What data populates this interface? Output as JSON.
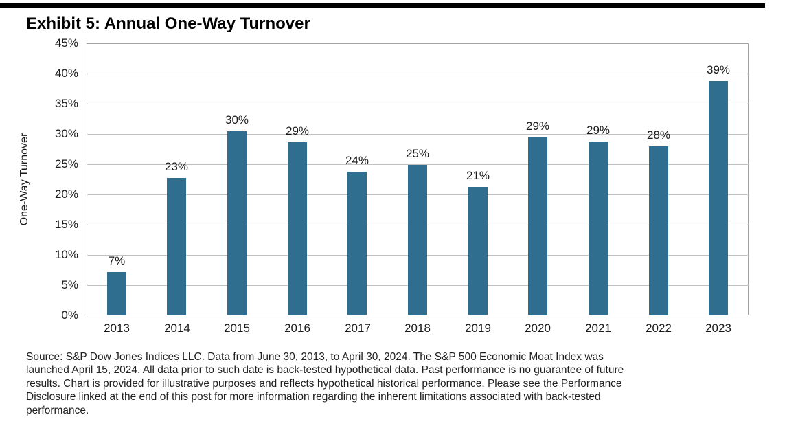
{
  "page": {
    "title": "Exhibit 5: Annual One-Way Turnover"
  },
  "accents": {
    "bar_color": "#2F6E8E",
    "grid_color": "#c2c2c2",
    "plot_border_color": "#a3a3a3",
    "top_rule_color": "#000000",
    "text_color": "#1a1a1a"
  },
  "chart_data": {
    "type": "bar",
    "title": "Exhibit 5: Annual One-Way Turnover",
    "categories": [
      "2013",
      "2014",
      "2015",
      "2016",
      "2017",
      "2018",
      "2019",
      "2020",
      "2021",
      "2022",
      "2023"
    ],
    "values": [
      7.2,
      22.7,
      30.4,
      28.6,
      23.7,
      24.9,
      21.3,
      29.4,
      28.7,
      27.9,
      38.7
    ],
    "bar_labels": [
      "7%",
      "23%",
      "30%",
      "29%",
      "24%",
      "25%",
      "21%",
      "29%",
      "29%",
      "28%",
      "39%"
    ],
    "xlabel": "",
    "ylabel": "One-Way Turnover",
    "ylim": [
      0,
      45
    ],
    "ytick_step": 5,
    "ytick_labels": [
      "0%",
      "5%",
      "10%",
      "15%",
      "20%",
      "25%",
      "30%",
      "35%",
      "40%",
      "45%"
    ],
    "grid": true,
    "legend": false,
    "bar_color": "#2F6E8E"
  },
  "footnote": {
    "lines": [
      "Source: S&P Dow Jones Indices LLC. Data from June 30, 2013, to April 30, 2024. The S&P 500 Economic Moat Index was",
      "launched April 15, 2024. All data prior to such date is back-tested hypothetical data. Past performance is no guarantee of future",
      "results. Chart is provided for illustrative purposes and reflects hypothetical historical performance. Please see the Performance",
      "Disclosure linked at the end of this post for more information regarding the inherent limitations associated with back-tested",
      "performance."
    ]
  }
}
